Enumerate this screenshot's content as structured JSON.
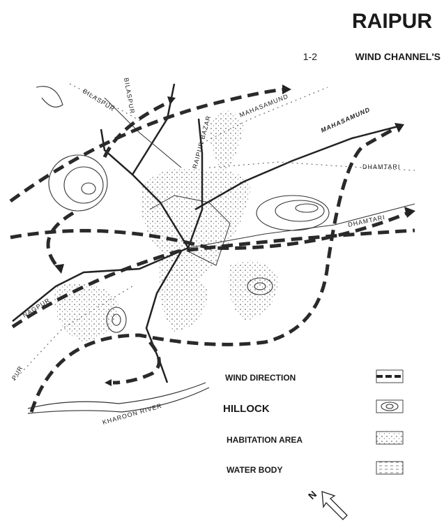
{
  "header": {
    "title": "RAIPUR",
    "number": "1-2",
    "subtitle": "WIND CHANNEL'S"
  },
  "map": {
    "labels": [
      "BILASPUR",
      "BILASPUR",
      "RAIPUR BAZAR",
      "MAHASAMUND",
      "MAHASAMUND",
      "DHAMTARI",
      "DHAMTARI",
      "NAGPUR",
      "PUR",
      "KHAROON RIVER"
    ]
  },
  "legend": {
    "items": [
      "WIND DIRECTION",
      "HILLOCK",
      "HABITATION AREA",
      "WATER BODY"
    ]
  },
  "north": "N"
}
